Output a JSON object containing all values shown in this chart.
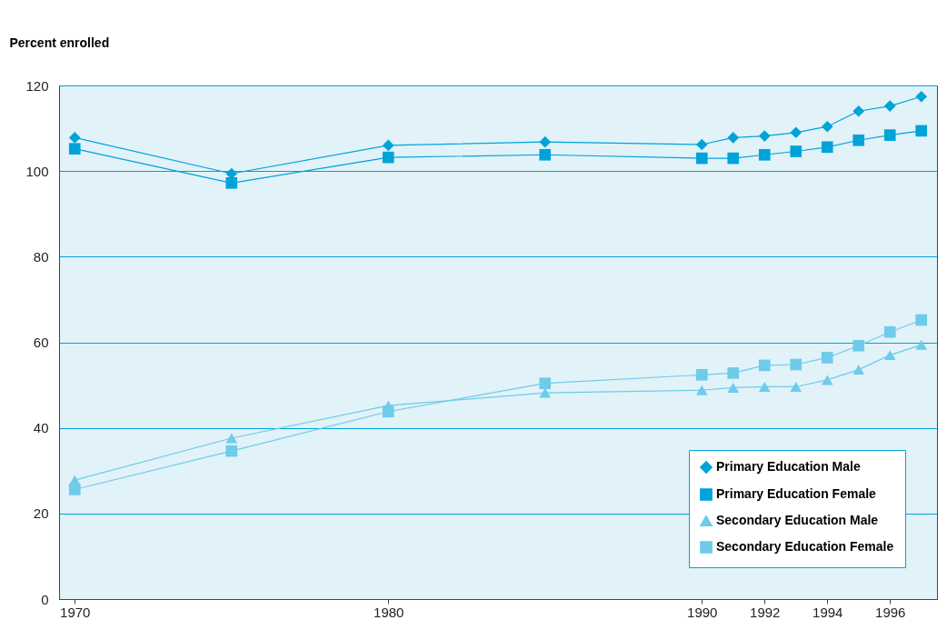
{
  "chart_data": {
    "type": "line",
    "ylabel": "Percent enrolled",
    "x": [
      1970,
      1975,
      1980,
      1985,
      1990,
      1991,
      1992,
      1993,
      1994,
      1995,
      1996,
      1997
    ],
    "xlim": [
      1969.5,
      1997.5
    ],
    "xticks": [
      1970,
      1980,
      1990,
      1992,
      1994,
      1996
    ],
    "ylim": [
      0,
      120
    ],
    "yticks": [
      0,
      20,
      40,
      60,
      80,
      100,
      120
    ],
    "grid": "y",
    "legend": "bottom right",
    "series": [
      {
        "name": "Primary Education Male",
        "color": "#00a3d9",
        "marker": "diamond",
        "values": [
          107.8,
          99.4,
          106,
          106.8,
          106.2,
          107.8,
          108.2,
          109,
          110.4,
          114,
          115.2,
          117.4
        ]
      },
      {
        "name": "Primary Education Female",
        "color": "#00a3d9",
        "marker": "square",
        "values": [
          105.2,
          97.2,
          103.2,
          103.8,
          103,
          103,
          103.8,
          104.6,
          105.6,
          107.2,
          108.4,
          109.4
        ]
      },
      {
        "name": "Secondary Education Male",
        "color": "#6ecbea",
        "marker": "triangle",
        "values": [
          27.8,
          37.6,
          45.2,
          48.2,
          48.8,
          49.4,
          49.6,
          49.6,
          51.2,
          53.6,
          57,
          59.4
        ]
      },
      {
        "name": "Secondary Education Female",
        "color": "#6ecbea",
        "marker": "square",
        "values": [
          25.6,
          34.6,
          43.8,
          50.4,
          52.4,
          52.8,
          54.6,
          54.8,
          56.4,
          59.2,
          62.4,
          65.2
        ]
      }
    ]
  }
}
